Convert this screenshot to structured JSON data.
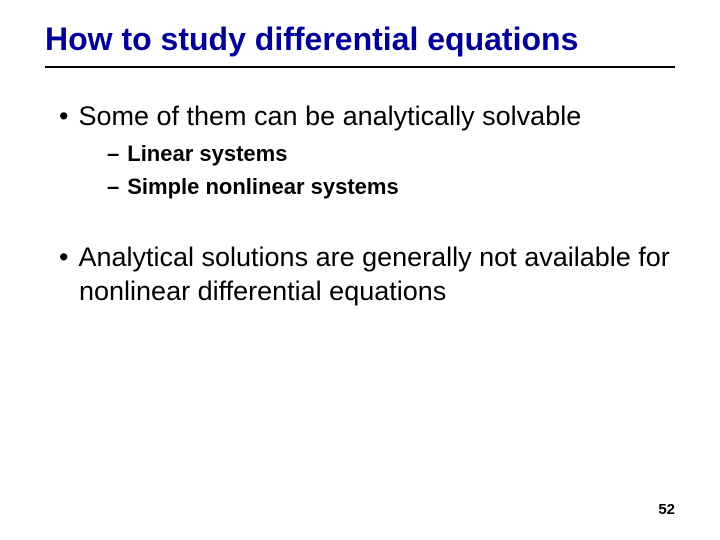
{
  "slide": {
    "title": "How to study differential equations",
    "title_color": "#000099",
    "title_fontsize": 32,
    "title_underline_color": "#000000",
    "background_color": "#ffffff",
    "text_color": "#000000",
    "body_fontsize": 27,
    "sub_fontsize": 22,
    "bullets": [
      {
        "level": 1,
        "text": "Some of them can be analytically solvable"
      },
      {
        "level": 2,
        "text": "Linear systems"
      },
      {
        "level": 2,
        "text": "Simple nonlinear systems"
      },
      {
        "level": 1,
        "text": "Analytical solutions are generally not available for nonlinear differential equations"
      }
    ],
    "page_number": "52",
    "page_number_fontsize": 15
  }
}
